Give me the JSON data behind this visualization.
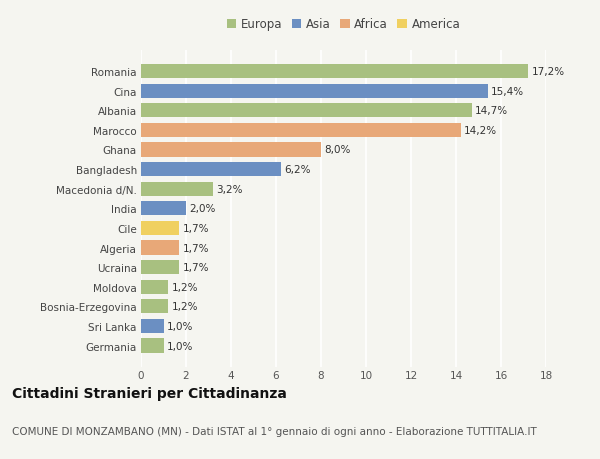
{
  "countries": [
    "Germania",
    "Sri Lanka",
    "Bosnia-Erzegovina",
    "Moldova",
    "Ucraina",
    "Algeria",
    "Cile",
    "India",
    "Macedonia d/N.",
    "Bangladesh",
    "Ghana",
    "Marocco",
    "Albania",
    "Cina",
    "Romania"
  ],
  "values": [
    1.0,
    1.0,
    1.2,
    1.2,
    1.7,
    1.7,
    1.7,
    2.0,
    3.2,
    6.2,
    8.0,
    14.2,
    14.7,
    15.4,
    17.2
  ],
  "labels": [
    "1,0%",
    "1,0%",
    "1,2%",
    "1,2%",
    "1,7%",
    "1,7%",
    "1,7%",
    "2,0%",
    "3,2%",
    "6,2%",
    "8,0%",
    "14,2%",
    "14,7%",
    "15,4%",
    "17,2%"
  ],
  "continents": [
    "Europa",
    "Asia",
    "Europa",
    "Europa",
    "Europa",
    "Africa",
    "America",
    "Asia",
    "Europa",
    "Asia",
    "Africa",
    "Africa",
    "Europa",
    "Asia",
    "Europa"
  ],
  "continent_colors": {
    "Europa": "#a8c080",
    "Asia": "#6b8fc2",
    "Africa": "#e8a878",
    "America": "#f0d060"
  },
  "legend_order": [
    "Europa",
    "Asia",
    "Africa",
    "America"
  ],
  "title": "Cittadini Stranieri per Cittadinanza",
  "subtitle": "COMUNE DI MONZAMBANO (MN) - Dati ISTAT al 1° gennaio di ogni anno - Elaborazione TUTTITALIA.IT",
  "xlim": [
    0,
    18
  ],
  "xticks": [
    0,
    2,
    4,
    6,
    8,
    10,
    12,
    14,
    16,
    18
  ],
  "background_color": "#f5f5f0",
  "grid_color": "#ffffff",
  "bar_height": 0.72,
  "title_fontsize": 10,
  "subtitle_fontsize": 7.5,
  "label_fontsize": 7.5,
  "tick_fontsize": 7.5,
  "legend_fontsize": 8.5
}
